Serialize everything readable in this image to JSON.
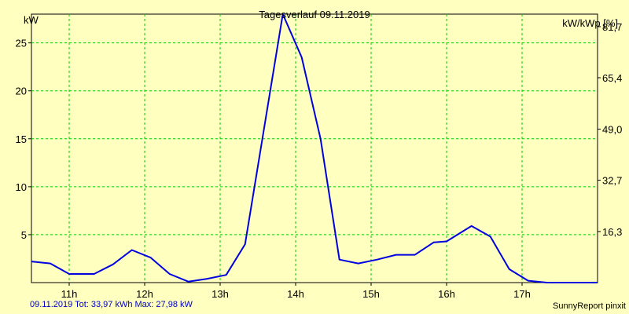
{
  "chart_data": {
    "type": "line",
    "title": "Tagesverlauf 09.11.2019",
    "ylabel": "kW",
    "y2label": "kW/kWp [%]",
    "ylim": [
      0,
      28
    ],
    "y2lim": [
      0,
      85.7
    ],
    "xlim": [
      10.5,
      18.0
    ],
    "yticks": [
      "5",
      "10",
      "15",
      "20",
      "25"
    ],
    "y2ticks": [
      "16,3",
      "32,7",
      "49,0",
      "65,4",
      "81,7"
    ],
    "xticks": [
      "11h",
      "12h",
      "13h",
      "14h",
      "15h",
      "16h",
      "17h"
    ],
    "grid": true,
    "line_color": "#0000e0",
    "grid_color": "#00cc00",
    "series": [
      {
        "x": [
          10.5,
          10.75,
          11.0,
          11.33,
          11.58,
          11.83,
          12.08,
          12.33,
          12.58,
          12.83,
          13.08,
          13.33,
          13.58,
          13.83,
          14.08,
          14.33,
          14.58,
          14.83,
          15.08,
          15.33,
          15.58,
          15.83,
          16.0,
          16.33,
          16.58,
          16.83,
          17.08,
          17.33,
          17.58,
          17.83,
          18.0
        ],
        "y": [
          2.2,
          2.0,
          0.9,
          0.9,
          1.9,
          3.4,
          2.6,
          0.9,
          0.1,
          0.4,
          0.8,
          4.0,
          16.0,
          28.0,
          23.5,
          15.0,
          2.4,
          2.0,
          2.4,
          2.9,
          2.9,
          4.2,
          4.3,
          5.9,
          4.8,
          1.4,
          0.2,
          0.0,
          0.0,
          0.0,
          0.0
        ]
      }
    ]
  },
  "footer": {
    "stats": "09.11.2019 Tot: 33,97 kWh Max: 27,98 kW",
    "brand": "SunnyReport pinxit"
  }
}
